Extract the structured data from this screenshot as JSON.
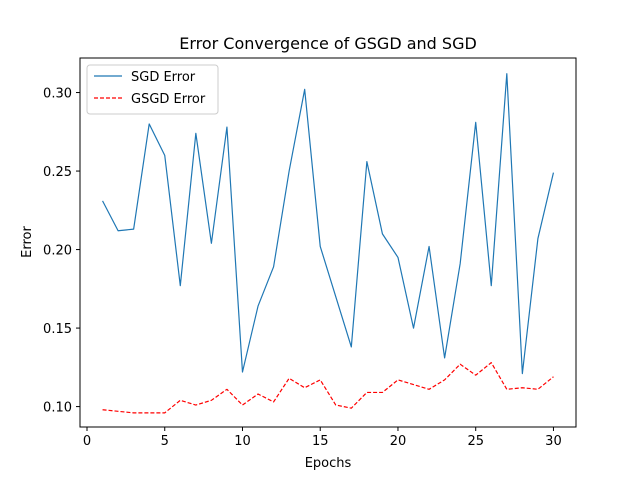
{
  "chart_data": {
    "type": "line",
    "title": "Error Convergence of GSGD and SGD",
    "xlabel": "Epochs",
    "ylabel": "Error",
    "xlim": [
      -0.45,
      31.45
    ],
    "ylim": [
      0.087,
      0.322
    ],
    "xticks": [
      0,
      5,
      10,
      15,
      20,
      25,
      30
    ],
    "yticks": [
      0.1,
      0.15,
      0.2,
      0.25,
      0.3
    ],
    "ytick_labels": [
      "0.10",
      "0.15",
      "0.20",
      "0.25",
      "0.30"
    ],
    "grid": false,
    "legend_position": "top-left",
    "x": [
      1,
      2,
      3,
      4,
      5,
      6,
      7,
      8,
      9,
      10,
      11,
      12,
      13,
      14,
      15,
      16,
      17,
      18,
      19,
      20,
      21,
      22,
      23,
      24,
      25,
      26,
      27,
      28,
      29,
      30
    ],
    "series": [
      {
        "name": "SGD Error",
        "color": "#1f77b4",
        "style": "solid",
        "values": [
          0.231,
          0.212,
          0.213,
          0.28,
          0.26,
          0.177,
          0.274,
          0.204,
          0.278,
          0.122,
          0.164,
          0.189,
          0.25,
          0.302,
          0.202,
          0.17,
          0.138,
          0.256,
          0.21,
          0.195,
          0.15,
          0.202,
          0.131,
          0.191,
          0.281,
          0.177,
          0.312,
          0.121,
          0.207,
          0.249
        ]
      },
      {
        "name": "GSGD Error",
        "color": "#ff0000",
        "style": "dashed",
        "values": [
          0.098,
          0.097,
          0.096,
          0.096,
          0.096,
          0.104,
          0.101,
          0.104,
          0.111,
          0.101,
          0.108,
          0.103,
          0.118,
          0.112,
          0.117,
          0.101,
          0.099,
          0.109,
          0.109,
          0.117,
          0.114,
          0.111,
          0.117,
          0.127,
          0.12,
          0.128,
          0.111,
          0.112,
          0.111,
          0.119
        ]
      }
    ]
  }
}
